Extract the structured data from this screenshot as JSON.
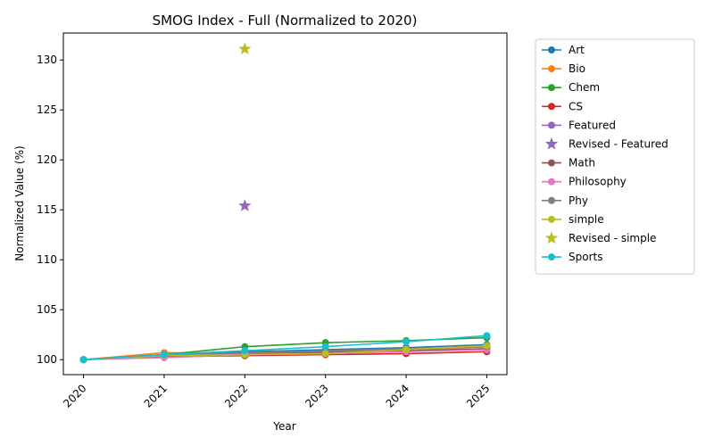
{
  "chart_data": {
    "type": "line",
    "title": "SMOG Index - Full (Normalized to 2020)",
    "xlabel": "Year",
    "ylabel": "Normalized Value (%)",
    "x": [
      2020,
      2021,
      2022,
      2023,
      2024,
      2025
    ],
    "x_tick_labels": [
      "2020",
      "2021",
      "2022",
      "2023",
      "2024",
      "2025"
    ],
    "y_ticks": [
      100,
      105,
      110,
      115,
      120,
      125,
      130
    ],
    "y_tick_labels": [
      "100",
      "105",
      "110",
      "115",
      "120",
      "125",
      "130"
    ],
    "xlim": [
      2019.75,
      2025.25
    ],
    "ylim": [
      98.5,
      132.7
    ],
    "grid": false,
    "legend_placement": "outside right, top",
    "series": [
      {
        "name": "Art",
        "color": "#1f77b4",
        "marker": "circle",
        "kind": "line",
        "x": [
          2020,
          2021,
          2022,
          2023,
          2024,
          2025
        ],
        "values": [
          100,
          100.5,
          100.8,
          101.0,
          101.2,
          101.5
        ]
      },
      {
        "name": "Bio",
        "color": "#ff7f0e",
        "marker": "circle",
        "kind": "line",
        "x": [
          2020,
          2021,
          2022,
          2023,
          2024,
          2025
        ],
        "values": [
          100,
          100.7,
          100.6,
          100.8,
          101.0,
          101.3
        ]
      },
      {
        "name": "Chem",
        "color": "#2ca02c",
        "marker": "circle",
        "kind": "line",
        "x": [
          2020,
          2021,
          2022,
          2023,
          2024,
          2025
        ],
        "values": [
          100,
          100.5,
          101.3,
          101.7,
          101.9,
          102.2
        ]
      },
      {
        "name": "CS",
        "color": "#d62728",
        "marker": "circle",
        "kind": "line",
        "x": [
          2020,
          2021,
          2022,
          2023,
          2024,
          2025
        ],
        "values": [
          100,
          100.3,
          100.4,
          100.5,
          100.6,
          100.8
        ]
      },
      {
        "name": "Featured",
        "color": "#9467bd",
        "marker": "circle",
        "kind": "line",
        "x": [
          2020,
          2021,
          2022,
          2023,
          2024,
          2025
        ],
        "values": [
          100,
          100.4,
          100.6,
          100.8,
          100.9,
          101.1
        ]
      },
      {
        "name": "Revised - Featured",
        "color": "#9467bd",
        "marker": "star",
        "kind": "point",
        "x": [
          2022
        ],
        "values": [
          115.4
        ]
      },
      {
        "name": "Math",
        "color": "#8c564b",
        "marker": "circle",
        "kind": "line",
        "x": [
          2020,
          2021,
          2022,
          2023,
          2024,
          2025
        ],
        "values": [
          100,
          100.4,
          100.5,
          100.7,
          100.9,
          101.1
        ]
      },
      {
        "name": "Philosophy",
        "color": "#e377c2",
        "marker": "circle",
        "kind": "line",
        "x": [
          2020,
          2021,
          2022,
          2023,
          2024,
          2025
        ],
        "values": [
          100,
          100.2,
          100.5,
          100.6,
          100.8,
          101.0
        ]
      },
      {
        "name": "Phy",
        "color": "#7f7f7f",
        "marker": "circle",
        "kind": "line",
        "x": [
          2020,
          2021,
          2022,
          2023,
          2024,
          2025
        ],
        "values": [
          100,
          100.5,
          100.7,
          100.9,
          101.1,
          101.3
        ]
      },
      {
        "name": "simple",
        "color": "#bcbd22",
        "marker": "circle",
        "kind": "line",
        "x": [
          2020,
          2021,
          2022,
          2023,
          2024,
          2025
        ],
        "values": [
          100,
          100.4,
          100.5,
          100.6,
          101.0,
          101.4
        ]
      },
      {
        "name": "Revised - simple",
        "color": "#bcbd22",
        "marker": "star",
        "kind": "point",
        "x": [
          2022
        ],
        "values": [
          131.1
        ]
      },
      {
        "name": "Sports",
        "color": "#17becf",
        "marker": "circle",
        "kind": "line",
        "x": [
          2020,
          2021,
          2022,
          2023,
          2024,
          2025
        ],
        "values": [
          100,
          100.5,
          100.9,
          101.3,
          101.8,
          102.4
        ]
      }
    ]
  }
}
